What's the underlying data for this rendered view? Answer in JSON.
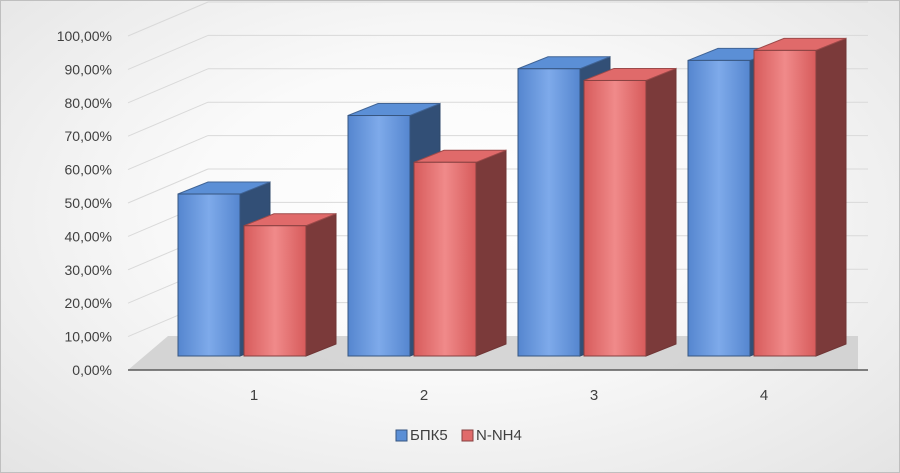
{
  "chart_data": {
    "type": "bar",
    "style": "3d-clustered-column",
    "categories": [
      "1",
      "2",
      "3",
      "4"
    ],
    "series": [
      {
        "name": "БПК5",
        "values": [
          0.485,
          0.72,
          0.86,
          0.885
        ],
        "color": "#5b8fd6"
      },
      {
        "name": "N-NH4",
        "values": [
          0.39,
          0.58,
          0.825,
          0.915
        ],
        "color": "#e06a6a"
      }
    ],
    "y_ticks": [
      "0,00%",
      "10,00%",
      "20,00%",
      "30,00%",
      "40,00%",
      "50,00%",
      "60,00%",
      "70,00%",
      "80,00%",
      "90,00%",
      "100,00%"
    ],
    "ylim": [
      0,
      1
    ],
    "grid": true,
    "legend_position": "bottom"
  }
}
